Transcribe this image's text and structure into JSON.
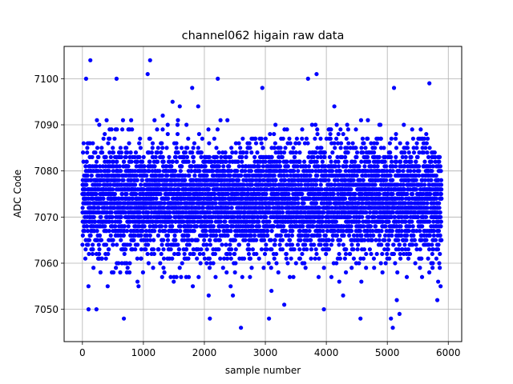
{
  "chart_data": {
    "type": "scatter",
    "title": "channel062 higain raw data",
    "xlabel": "sample number",
    "ylabel": "ADC Code",
    "xlim": [
      -300,
      6220
    ],
    "ylim": [
      7043,
      7107
    ],
    "xticks": [
      0,
      1000,
      2000,
      3000,
      4000,
      5000,
      6000
    ],
    "yticks": [
      7050,
      7060,
      7070,
      7080,
      7090,
      7100
    ],
    "grid": true,
    "marker_color": "#0000ff",
    "series": [
      {
        "name": "",
        "n_points": 5888,
        "typical_range": [
          7060,
          7087
        ],
        "highlighted_points": [
          {
            "x": 60,
            "y": 7100
          },
          {
            "x": 130,
            "y": 7104
          },
          {
            "x": 560,
            "y": 7100
          },
          {
            "x": 1070,
            "y": 7101
          },
          {
            "x": 1110,
            "y": 7104
          },
          {
            "x": 1800,
            "y": 7098
          },
          {
            "x": 2220,
            "y": 7100
          },
          {
            "x": 2950,
            "y": 7098
          },
          {
            "x": 3700,
            "y": 7100
          },
          {
            "x": 3840,
            "y": 7101
          },
          {
            "x": 5110,
            "y": 7098
          },
          {
            "x": 5690,
            "y": 7099
          },
          {
            "x": 100,
            "y": 7050
          },
          {
            "x": 230,
            "y": 7050
          },
          {
            "x": 680,
            "y": 7048
          },
          {
            "x": 2090,
            "y": 7048
          },
          {
            "x": 2600,
            "y": 7046
          },
          {
            "x": 3060,
            "y": 7048
          },
          {
            "x": 3310,
            "y": 7051
          },
          {
            "x": 3960,
            "y": 7050
          },
          {
            "x": 4560,
            "y": 7048
          },
          {
            "x": 5060,
            "y": 7048
          },
          {
            "x": 5090,
            "y": 7046
          },
          {
            "x": 5200,
            "y": 7049
          },
          {
            "x": 5820,
            "y": 7052
          }
        ]
      }
    ]
  }
}
